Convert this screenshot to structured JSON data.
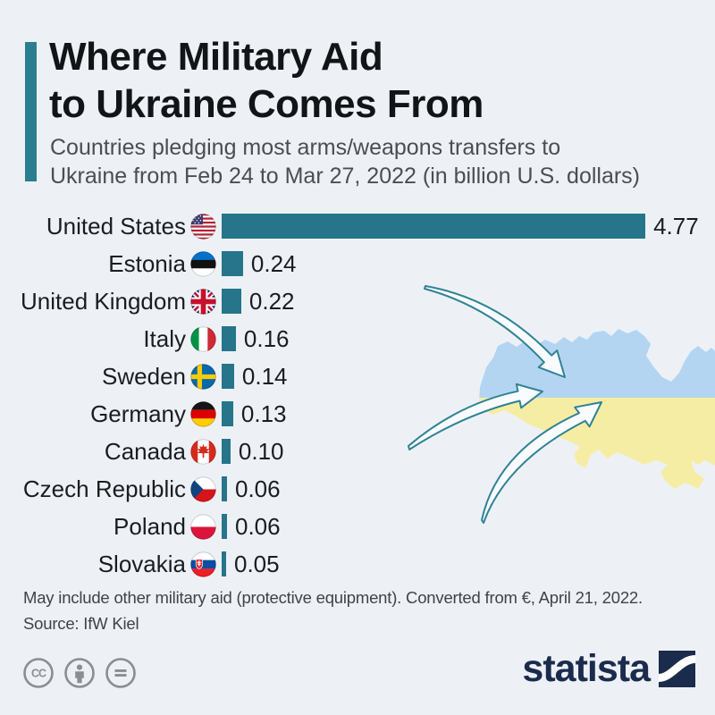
{
  "title": {
    "line1": "Where Military Aid",
    "line2": "to Ukraine Comes From"
  },
  "subtitle": {
    "line1": "Countries pledging most arms/weapons transfers to",
    "line2": "Ukraine from Feb 24 to Mar 27, 2022 (in billion U.S. dollars)"
  },
  "chart_data": {
    "type": "bar",
    "orientation": "horizontal",
    "title": "Where Military Aid to Ukraine Comes From",
    "unit": "billion U.S. dollars",
    "xlim": [
      0,
      4.77
    ],
    "grid": false,
    "categories": [
      "United States",
      "Estonia",
      "United Kingdom",
      "Italy",
      "Sweden",
      "Germany",
      "Canada",
      "Czech Republic",
      "Poland",
      "Slovakia"
    ],
    "values": [
      4.77,
      0.24,
      0.22,
      0.16,
      0.14,
      0.13,
      0.1,
      0.06,
      0.06,
      0.05
    ],
    "value_labels": [
      "4.77",
      "0.24",
      "0.22",
      "0.16",
      "0.14",
      "0.13",
      "0.10",
      "0.06",
      "0.06",
      "0.05"
    ],
    "flags": [
      "us",
      "ee",
      "gb",
      "it",
      "se",
      "de",
      "ca",
      "cz",
      "pl",
      "sk"
    ],
    "bar_color": "#26758A"
  },
  "illustration": {
    "name": "ukraine-map-with-aid-arrows",
    "map_blue": "#B3D5F2",
    "map_yellow": "#F6EDA4",
    "arrow_stroke": "#2F8294",
    "arrow_fill": "#F9FCFE"
  },
  "footnote": {
    "line1": "May include other military aid (protective equipment). Converted from €, April 21, 2022.",
    "line2": "Source: IfW Kiel"
  },
  "branding": {
    "logo_text": "statista",
    "license_icons": [
      "creative-commons",
      "attribution",
      "no-derivatives"
    ]
  },
  "colors": {
    "background": "#EDF1F6",
    "accent_teal": "#2C7D90",
    "bar_teal": "#26758A",
    "title_color": "#121518",
    "subtitle_color": "#4A4E52",
    "navy": "#1B2B4C",
    "license_gray": "#898E92"
  }
}
